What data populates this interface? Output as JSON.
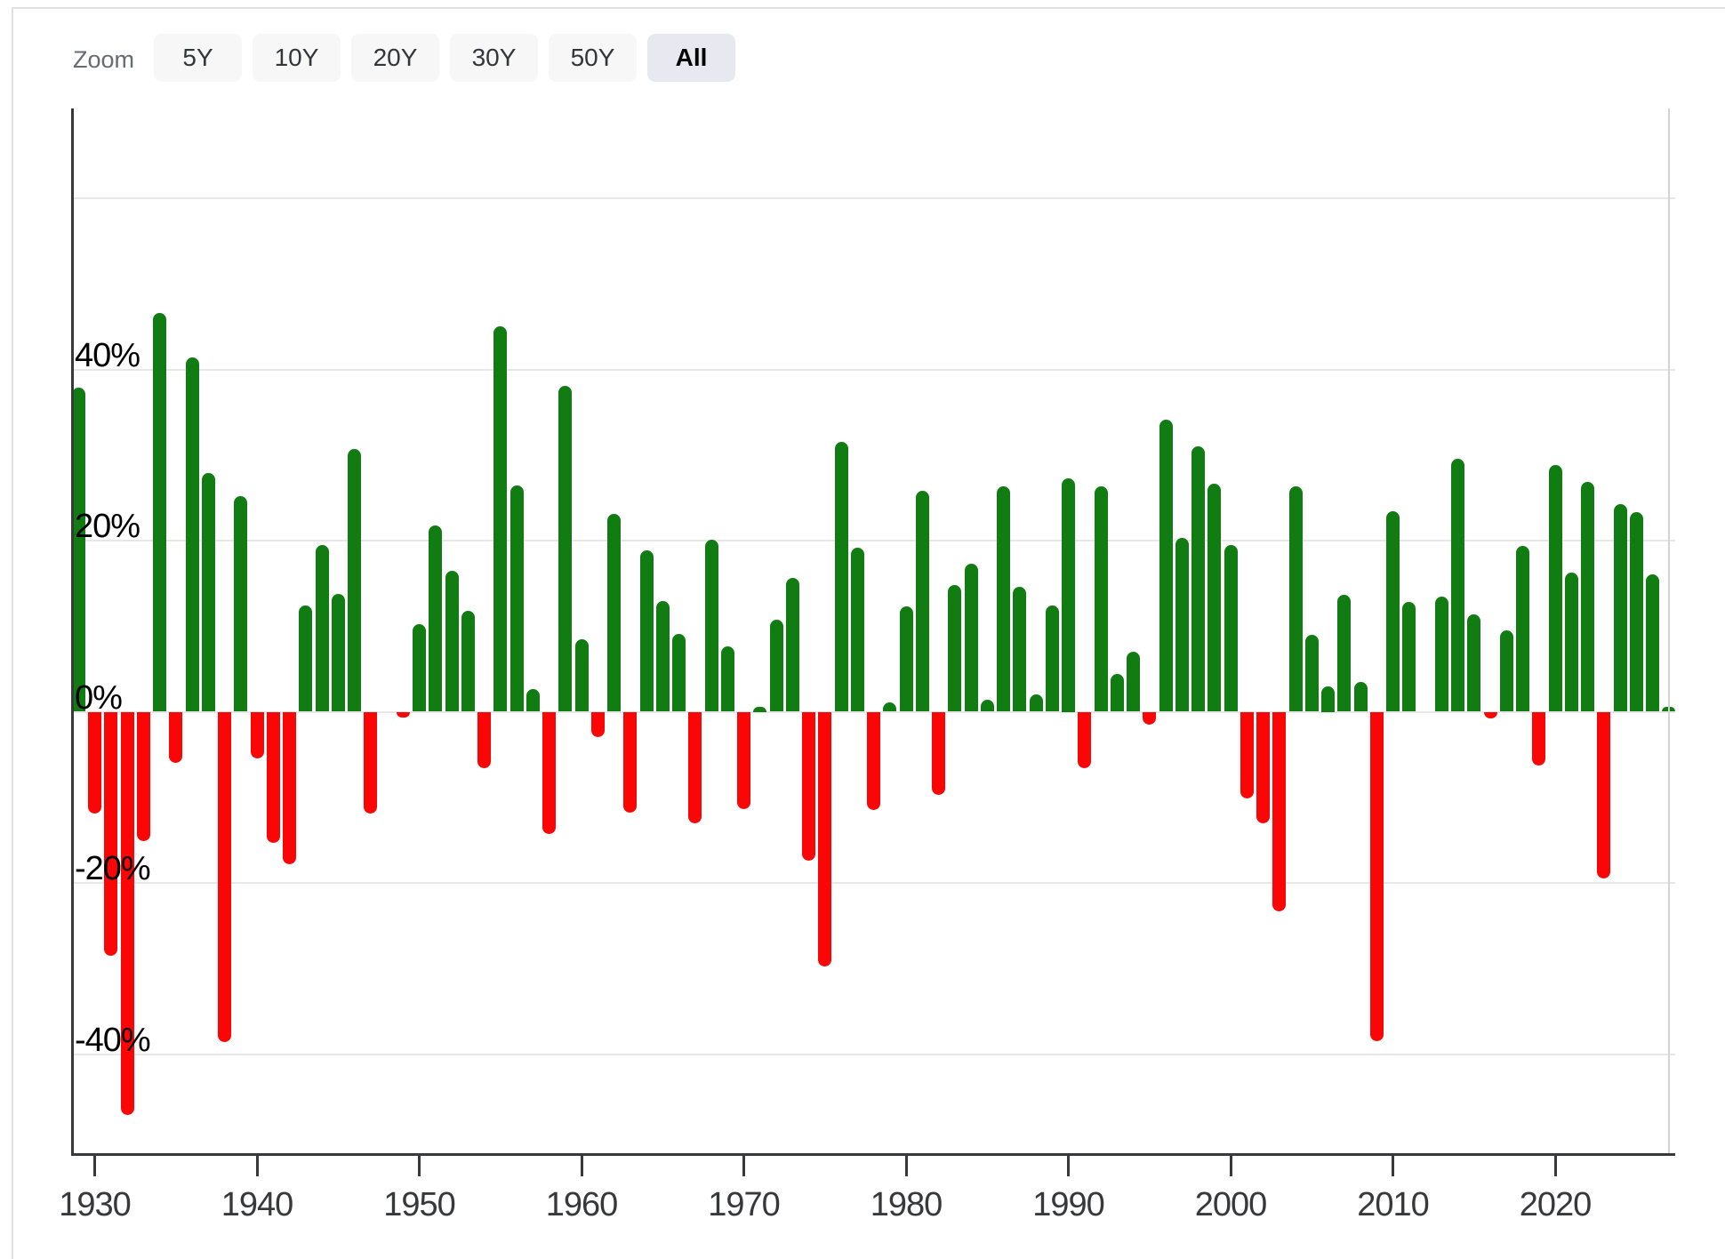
{
  "zoom_toolbar": {
    "label": "Zoom",
    "buttons": [
      {
        "label": "5Y",
        "active": false
      },
      {
        "label": "10Y",
        "active": false
      },
      {
        "label": "20Y",
        "active": false
      },
      {
        "label": "30Y",
        "active": false
      },
      {
        "label": "50Y",
        "active": false
      },
      {
        "label": "All",
        "active": true
      }
    ]
  },
  "chart_data": {
    "type": "bar",
    "title": "",
    "xlabel": "",
    "ylabel": "",
    "units": "%",
    "positive_color": "#117c11",
    "negative_color": "#fb0606",
    "gridline_color": "#e7e7e7",
    "axis_color": "#38393b",
    "grid_values": [
      60,
      40,
      20,
      0,
      -20,
      -40
    ],
    "y_tick_labels": [
      {
        "value": 40,
        "label": "40%"
      },
      {
        "value": 20,
        "label": "20%"
      },
      {
        "value": 0,
        "label": "0%"
      },
      {
        "value": -20,
        "label": "-20%"
      },
      {
        "value": -40,
        "label": "-40%"
      }
    ],
    "x_tick_labels": [
      "1930",
      "1940",
      "1950",
      "1960",
      "1970",
      "1980",
      "1990",
      "2000",
      "2010",
      "2020"
    ],
    "ylim": [
      -52,
      70.5
    ],
    "xlim_years": [
      1928,
      2026
    ],
    "legend": "none",
    "grid": "horizontal",
    "point_placement": "year-end",
    "series": [
      {
        "year": 1928,
        "value": 37.88
      },
      {
        "year": 1929,
        "value": -11.91
      },
      {
        "year": 1930,
        "value": -28.48
      },
      {
        "year": 1931,
        "value": -47.07
      },
      {
        "year": 1932,
        "value": -15.15
      },
      {
        "year": 1933,
        "value": 46.59
      },
      {
        "year": 1934,
        "value": -5.94
      },
      {
        "year": 1935,
        "value": 41.37
      },
      {
        "year": 1936,
        "value": 27.92
      },
      {
        "year": 1937,
        "value": -38.59
      },
      {
        "year": 1938,
        "value": 25.21
      },
      {
        "year": 1939,
        "value": -5.45
      },
      {
        "year": 1940,
        "value": -15.29
      },
      {
        "year": 1941,
        "value": -17.86
      },
      {
        "year": 1942,
        "value": 12.43
      },
      {
        "year": 1943,
        "value": 19.45
      },
      {
        "year": 1944,
        "value": 13.8
      },
      {
        "year": 1945,
        "value": 30.72
      },
      {
        "year": 1946,
        "value": -11.87
      },
      {
        "year": 1947,
        "value": 0.0
      },
      {
        "year": 1948,
        "value": -0.65
      },
      {
        "year": 1949,
        "value": 10.26
      },
      {
        "year": 1950,
        "value": 21.78
      },
      {
        "year": 1951,
        "value": 16.46
      },
      {
        "year": 1952,
        "value": 11.78
      },
      {
        "year": 1953,
        "value": -6.62
      },
      {
        "year": 1954,
        "value": 45.02
      },
      {
        "year": 1955,
        "value": 26.4
      },
      {
        "year": 1956,
        "value": 2.62
      },
      {
        "year": 1957,
        "value": -14.31
      },
      {
        "year": 1958,
        "value": 38.06
      },
      {
        "year": 1959,
        "value": 8.48
      },
      {
        "year": 1960,
        "value": -2.97
      },
      {
        "year": 1961,
        "value": 23.13
      },
      {
        "year": 1962,
        "value": -11.81
      },
      {
        "year": 1963,
        "value": 18.89
      },
      {
        "year": 1964,
        "value": 12.97
      },
      {
        "year": 1965,
        "value": 9.06
      },
      {
        "year": 1966,
        "value": -13.09
      },
      {
        "year": 1967,
        "value": 20.09
      },
      {
        "year": 1968,
        "value": 7.66
      },
      {
        "year": 1969,
        "value": -11.36
      },
      {
        "year": 1970,
        "value": 0.1
      },
      {
        "year": 1971,
        "value": 10.79
      },
      {
        "year": 1972,
        "value": 15.63
      },
      {
        "year": 1973,
        "value": -17.37
      },
      {
        "year": 1974,
        "value": -29.72
      },
      {
        "year": 1975,
        "value": 31.55
      },
      {
        "year": 1976,
        "value": 19.15
      },
      {
        "year": 1977,
        "value": -11.5
      },
      {
        "year": 1978,
        "value": 1.06
      },
      {
        "year": 1979,
        "value": 12.31
      },
      {
        "year": 1980,
        "value": 25.77
      },
      {
        "year": 1981,
        "value": -9.73
      },
      {
        "year": 1982,
        "value": 14.76
      },
      {
        "year": 1983,
        "value": 17.27
      },
      {
        "year": 1984,
        "value": 1.4
      },
      {
        "year": 1985,
        "value": 26.33
      },
      {
        "year": 1986,
        "value": 14.62
      },
      {
        "year": 1987,
        "value": 2.03
      },
      {
        "year": 1988,
        "value": 12.4
      },
      {
        "year": 1989,
        "value": 27.25
      },
      {
        "year": 1990,
        "value": -6.56
      },
      {
        "year": 1991,
        "value": 26.31
      },
      {
        "year": 1992,
        "value": 4.46
      },
      {
        "year": 1993,
        "value": 7.06
      },
      {
        "year": 1994,
        "value": -1.54
      },
      {
        "year": 1995,
        "value": 34.11
      },
      {
        "year": 1996,
        "value": 20.26
      },
      {
        "year": 1997,
        "value": 31.01
      },
      {
        "year": 1998,
        "value": 26.67
      },
      {
        "year": 1999,
        "value": 19.53
      },
      {
        "year": 2000,
        "value": -10.14
      },
      {
        "year": 2001,
        "value": -13.04
      },
      {
        "year": 2002,
        "value": -23.37
      },
      {
        "year": 2003,
        "value": 26.38
      },
      {
        "year": 2004,
        "value": 8.99
      },
      {
        "year": 2005,
        "value": 3.0
      },
      {
        "year": 2006,
        "value": 13.62
      },
      {
        "year": 2007,
        "value": 3.53
      },
      {
        "year": 2008,
        "value": -38.49
      },
      {
        "year": 2009,
        "value": 23.45
      },
      {
        "year": 2010,
        "value": 12.78
      },
      {
        "year": 2011,
        "value": 0.0
      },
      {
        "year": 2012,
        "value": 13.41
      },
      {
        "year": 2013,
        "value": 29.6
      },
      {
        "year": 2014,
        "value": 11.39
      },
      {
        "year": 2015,
        "value": -0.73
      },
      {
        "year": 2016,
        "value": 9.54
      },
      {
        "year": 2017,
        "value": 19.42
      },
      {
        "year": 2018,
        "value": -6.24
      },
      {
        "year": 2019,
        "value": 28.88
      },
      {
        "year": 2020,
        "value": 16.26
      },
      {
        "year": 2021,
        "value": 26.89
      },
      {
        "year": 2022,
        "value": -19.44
      },
      {
        "year": 2023,
        "value": 24.23
      },
      {
        "year": 2024,
        "value": 23.31
      },
      {
        "year": 2025,
        "value": 16.1
      },
      {
        "year": 2026,
        "value": 0.6
      }
    ]
  }
}
